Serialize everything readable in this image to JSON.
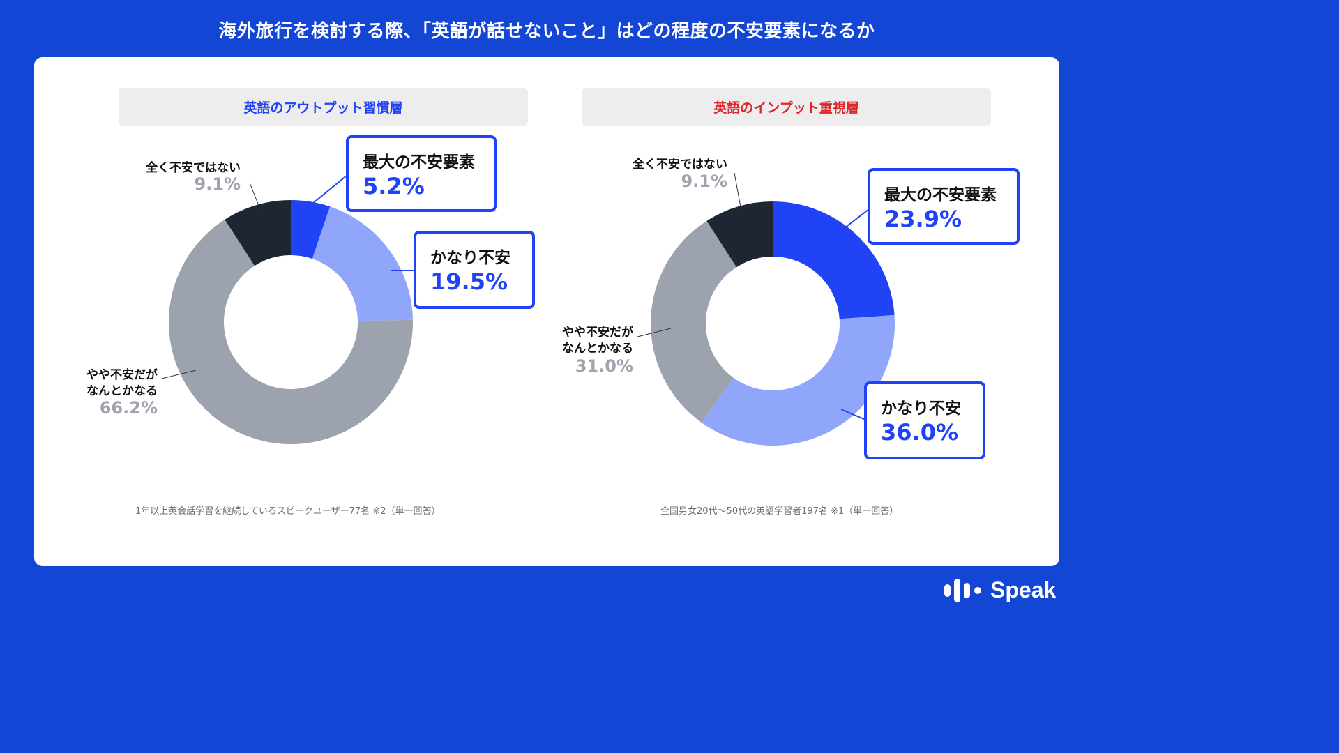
{
  "title": "海外旅行を検討する際、「英語が話せないこと」はどの程度の不安要素になるか",
  "colors": {
    "background": "#1446d6",
    "slice_max": "#1f43f5",
    "slice_quite": "#8fa6fb",
    "slice_somewhat": "#9da3ae",
    "slice_none": "#1e2533",
    "label_blue": "#1f43f5",
    "label_gray": "#9ea3ad",
    "header_blue": "#1f43f5",
    "header_red": "#e0262b"
  },
  "panels": [
    {
      "header": "英語のアウトプット習慣層",
      "header_color": "#1f43f5",
      "footnote": "1年以上英会話学習を継続しているスピークユーザー77名 ※2（単一回答）"
    },
    {
      "header": "英語のインプット重視層",
      "header_color": "#e0262b",
      "footnote": "全国男女20代〜50代の英語学習者197名 ※1（単一回答）"
    }
  ],
  "chart_data": [
    {
      "type": "pie",
      "title": "英語のアウトプット習慣層",
      "slices": [
        {
          "label": "最大の不安要素",
          "value": 5.2,
          "display": "5.2%",
          "color": "#1f43f5"
        },
        {
          "label": "かなり不安",
          "value": 19.5,
          "display": "19.5%",
          "color": "#8fa6fb"
        },
        {
          "label": "やや不安だが\nなんとかなる",
          "value": 66.2,
          "display": "66.2%",
          "color": "#9da3ae"
        },
        {
          "label": "全く不安ではない",
          "value": 9.1,
          "display": "9.1%",
          "color": "#1e2533"
        }
      ]
    },
    {
      "type": "pie",
      "title": "英語のインプット重視層",
      "slices": [
        {
          "label": "最大の不安要素",
          "value": 23.9,
          "display": "23.9%",
          "color": "#1f43f5"
        },
        {
          "label": "かなり不安",
          "value": 36.0,
          "display": "36.0%",
          "color": "#8fa6fb"
        },
        {
          "label": "やや不安だが\nなんとかなる",
          "value": 31.0,
          "display": "31.0%",
          "color": "#9da3ae"
        },
        {
          "label": "全く不安ではない",
          "value": 9.1,
          "display": "9.1%",
          "color": "#1e2533"
        }
      ]
    }
  ],
  "logo": {
    "text": "Speak"
  }
}
